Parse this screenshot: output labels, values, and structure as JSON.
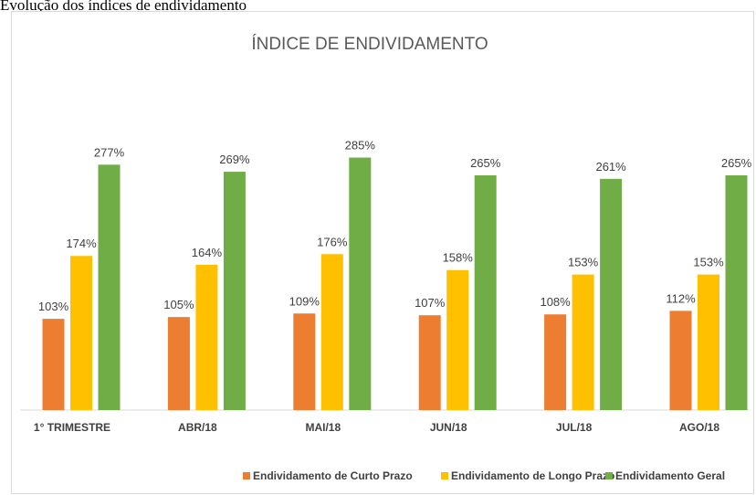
{
  "heading": "Evolução dos índices de endividamento",
  "chart_data": {
    "type": "bar",
    "title": "ÍNDICE DE ENDIVIDAMENTO",
    "categories": [
      "1° TRIMESTRE",
      "ABR/18",
      "MAI/18",
      "JUN/18",
      "JUL/18",
      "AGO/18"
    ],
    "series": [
      {
        "name": "Endividamento de Curto Prazo",
        "color": "#ED7D31",
        "values": [
          103,
          105,
          109,
          107,
          108,
          112
        ],
        "value_labels": [
          "103%",
          "105%",
          "109%",
          "107%",
          "108%",
          "112%"
        ]
      },
      {
        "name": "Endividamento de Longo Prazo",
        "color": "#FFC000",
        "values": [
          174,
          164,
          176,
          158,
          153,
          153
        ],
        "value_labels": [
          "174%",
          "164%",
          "176%",
          "158%",
          "153%",
          "153%"
        ]
      },
      {
        "name": "Endividamento Geral",
        "color": "#70AD47",
        "values": [
          277,
          269,
          285,
          265,
          261,
          265
        ],
        "value_labels": [
          "277%",
          "269%",
          "285%",
          "265%",
          "261%",
          "265%"
        ]
      }
    ],
    "ylim": [
      0,
      300
    ],
    "legend": "bottom"
  }
}
